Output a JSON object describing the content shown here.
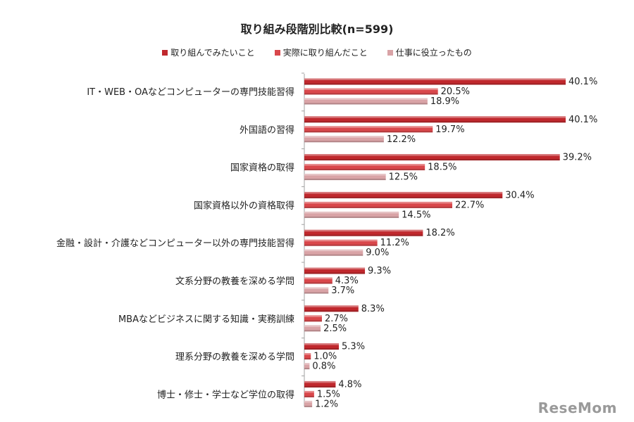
{
  "chart_data": {
    "type": "bar",
    "orientation": "horizontal",
    "title": "取り組み段階別比較(n=599)",
    "categories": [
      "IT・WEB・OAなどコンピューターの専門技能習得",
      "外国語の習得",
      "国家資格の取得",
      "国家資格以外の資格取得",
      "金融・設計・介護などコンピューター以外の専門技能習得",
      "文系分野の教養を深める学問",
      "MBAなどビジネスに関する知識・実務訓練",
      "理系分野の教養を深める学問",
      "博士・修士・学士など学位の取得"
    ],
    "series": [
      {
        "name": "取り組んでみたいこと",
        "color": "#c0282d",
        "values": [
          40.1,
          40.1,
          39.2,
          30.4,
          18.2,
          9.3,
          8.3,
          5.3,
          4.8
        ],
        "labels": [
          "40.1%",
          "40.1%",
          "39.2%",
          "30.4%",
          "18.2%",
          "9.3%",
          "8.3%",
          "5.3%",
          "4.8%"
        ]
      },
      {
        "name": "実際に取り組んだこと",
        "color": "#d9474b",
        "values": [
          20.5,
          19.7,
          18.5,
          22.7,
          11.2,
          4.3,
          2.7,
          1.0,
          1.5
        ],
        "labels": [
          "20.5%",
          "19.7%",
          "18.5%",
          "22.7%",
          "11.2%",
          "4.3%",
          "2.7%",
          "1.0%",
          "1.5%"
        ]
      },
      {
        "name": "仕事に役立ったもの",
        "color": "#d9a3a6",
        "values": [
          18.9,
          12.2,
          12.5,
          14.5,
          9.0,
          3.7,
          2.5,
          0.8,
          1.2
        ],
        "labels": [
          "18.9%",
          "12.2%",
          "12.5%",
          "14.5%",
          "9.0%",
          "3.7%",
          "2.5%",
          "0.8%",
          "1.2%"
        ]
      }
    ],
    "xlim": [
      0,
      40.1
    ],
    "legend_position": "top",
    "grid": false
  },
  "watermark": "ReseMom"
}
